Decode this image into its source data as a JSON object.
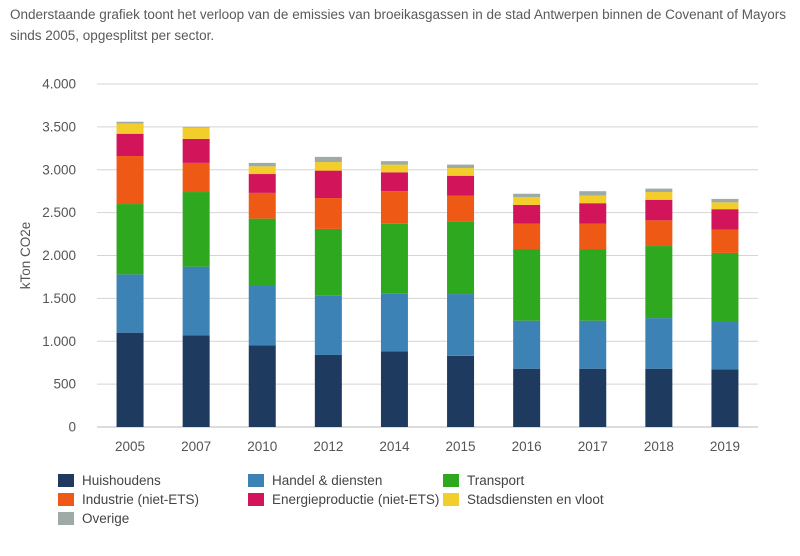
{
  "intro_text": "Onderstaande grafiek toont het verloop van de emissies van broeikasgassen in de stad Antwerpen binnen de Covenant of Mayors sinds 2005, opgesplitst per sector.",
  "chart_data": {
    "type": "bar",
    "stacked": true,
    "title": "",
    "xlabel": "",
    "ylabel": "kTon CO2e",
    "ylim": [
      0,
      4000
    ],
    "yticks": [
      0,
      500,
      1000,
      1500,
      2000,
      2500,
      3000,
      3500,
      4000
    ],
    "ytick_labels": [
      "0",
      "500",
      "1.000",
      "1.500",
      "2.000",
      "2.500",
      "3.000",
      "3.500",
      "4.000"
    ],
    "grid": true,
    "legend_position": "bottom",
    "categories": [
      "2005",
      "2007",
      "2010",
      "2012",
      "2014",
      "2015",
      "2016",
      "2017",
      "2018",
      "2019"
    ],
    "series": [
      {
        "name": "Huishoudens",
        "color": "#1e3a5f",
        "values": [
          1100,
          1070,
          950,
          840,
          880,
          830,
          680,
          680,
          680,
          670
        ]
      },
      {
        "name": "Handel & diensten",
        "color": "#3c82b4",
        "values": [
          680,
          800,
          700,
          690,
          680,
          720,
          560,
          560,
          590,
          560
        ]
      },
      {
        "name": "Transport",
        "color": "#2ea81e",
        "values": [
          820,
          870,
          780,
          780,
          810,
          850,
          830,
          830,
          840,
          800
        ]
      },
      {
        "name": "Industrie (niet-ETS)",
        "color": "#ee5a16",
        "values": [
          560,
          340,
          300,
          360,
          380,
          300,
          300,
          300,
          300,
          270
        ]
      },
      {
        "name": "Energieproductie (niet-ETS)",
        "color": "#d2145a",
        "values": [
          260,
          280,
          220,
          320,
          220,
          230,
          220,
          240,
          240,
          240
        ]
      },
      {
        "name": "Stadsdiensten en vloot",
        "color": "#f3cd2a",
        "values": [
          120,
          130,
          90,
          100,
          90,
          90,
          90,
          90,
          90,
          80
        ]
      },
      {
        "name": "Overige",
        "color": "#9eaaa5",
        "values": [
          20,
          10,
          40,
          60,
          40,
          40,
          40,
          50,
          40,
          40
        ]
      }
    ]
  }
}
